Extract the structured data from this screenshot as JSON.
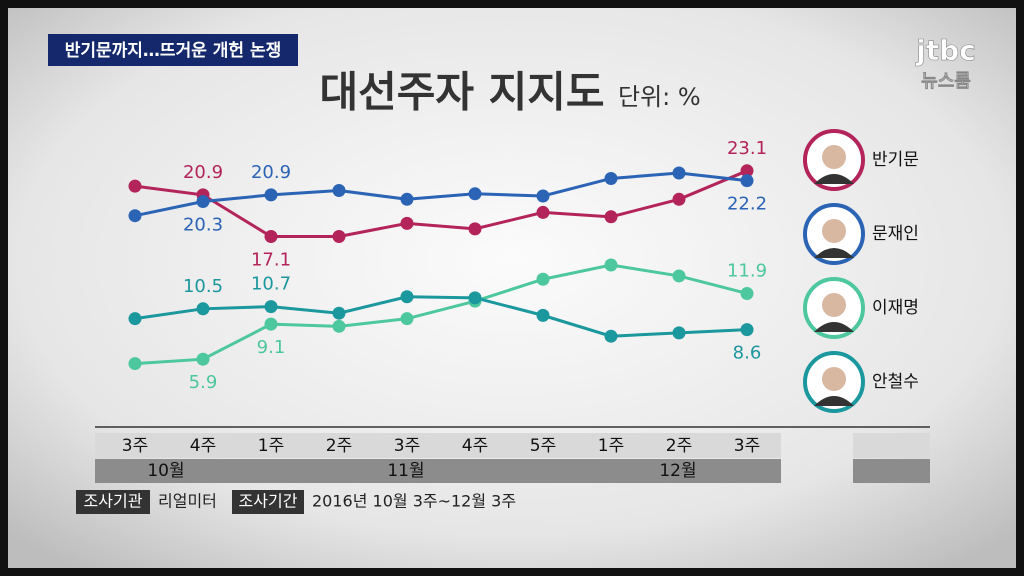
{
  "header": {
    "banner": "반기문까지…뜨거운 개헌 논쟁",
    "logo": "jtbc",
    "logo_sub": "뉴스룸"
  },
  "chart_data": {
    "type": "line",
    "title": "대선주자 지지도",
    "unit": "단위: %",
    "categories": [
      "3주",
      "4주",
      "1주",
      "2주",
      "3주",
      "4주",
      "5주",
      "1주",
      "2주",
      "3주"
    ],
    "groups": [
      {
        "label": "10월",
        "span": 2
      },
      {
        "label": "11월",
        "span": 5
      },
      {
        "label": "12월",
        "span": 3
      }
    ],
    "ylim": [
      4,
      25
    ],
    "series": [
      {
        "name": "반기문",
        "color": "#b3245a",
        "values": [
          21.7,
          20.9,
          17.1,
          17.1,
          18.3,
          17.8,
          19.3,
          18.9,
          20.5,
          23.1
        ],
        "value_labels": [
          null,
          "20.9",
          "17.1",
          null,
          null,
          null,
          null,
          null,
          null,
          "23.1"
        ]
      },
      {
        "name": "문재인",
        "color": "#2b63b5",
        "values": [
          19.0,
          20.3,
          20.9,
          21.3,
          20.5,
          21.0,
          20.8,
          22.4,
          22.9,
          22.2
        ],
        "value_labels": [
          null,
          "20.3",
          "20.9",
          null,
          null,
          null,
          null,
          null,
          null,
          "22.2"
        ]
      },
      {
        "name": "이재명",
        "color": "#4cc79e",
        "values": [
          5.5,
          5.9,
          9.1,
          8.9,
          9.6,
          11.2,
          13.2,
          14.5,
          13.5,
          11.9
        ],
        "value_labels": [
          null,
          "5.9",
          "9.1",
          null,
          null,
          null,
          null,
          null,
          null,
          "11.9"
        ]
      },
      {
        "name": "안철수",
        "color": "#1b979e",
        "values": [
          9.6,
          10.5,
          10.7,
          10.1,
          11.6,
          11.5,
          9.9,
          8.0,
          8.3,
          8.6
        ],
        "value_labels": [
          null,
          "10.5",
          "10.7",
          null,
          null,
          null,
          null,
          null,
          null,
          "8.6"
        ]
      }
    ]
  },
  "footer": {
    "org_label": "조사기관",
    "org": "리얼미터",
    "period_label": "조사기간",
    "period": "2016년 10월 3주~12월 3주"
  }
}
